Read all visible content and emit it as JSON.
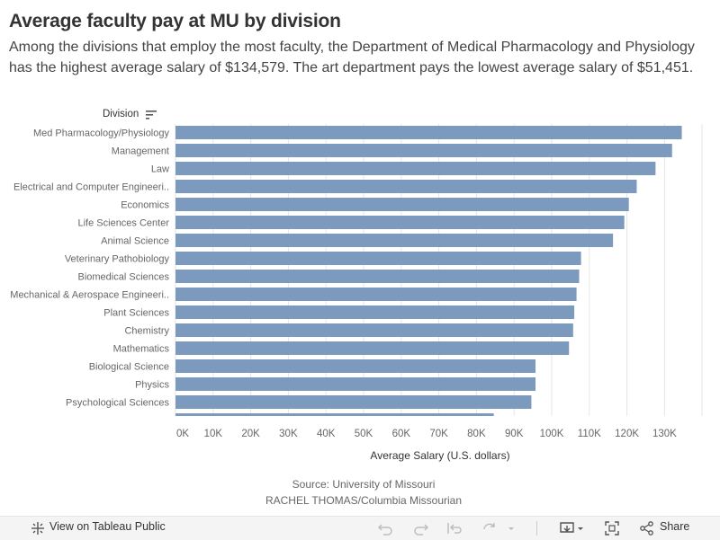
{
  "header": {
    "title": "Average faculty pay at MU by division",
    "subtitle": "Among the divisions that employ the most faculty, the Department of Medical Pharmacology and Physiology has the highest average salary of $134,579. The art department pays the lowest average salary of $51,451."
  },
  "field_label": "Division",
  "source": {
    "line1": "Source: University of Missouri",
    "line2": "RACHEL THOMAS/Columbia Missourian"
  },
  "footer": {
    "tableau_label": "View on Tableau Public",
    "share_label": "Share"
  },
  "colors": {
    "bar": "#7b9abd",
    "grid": "#e6e6e6",
    "axis_text": "#666666"
  },
  "chart_data": {
    "type": "bar",
    "orientation": "horizontal",
    "title": "",
    "xlabel": "Average Salary (U.S. dollars)",
    "ylabel": "Division",
    "categories": [
      "Med Pharmacology/Physiology",
      "Management",
      "Law",
      "Electrical and Computer Engineeri..",
      "Economics",
      "Life Sciences Center",
      "Animal Science",
      "Veterinary Pathobiology",
      "Biomedical Sciences",
      "Mechanical & Aerospace Engineeri..",
      "Plant Sciences",
      "Chemistry",
      "Mathematics",
      "Biological Science",
      "Physics",
      "Psychological Sciences",
      ""
    ],
    "values": [
      134579,
      132000,
      127600,
      122600,
      120500,
      119300,
      116300,
      107800,
      107300,
      106600,
      106000,
      105700,
      104600,
      95700,
      95700,
      94600,
      84600
    ],
    "xlim": [
      0,
      140000
    ],
    "xticks": [
      0,
      10000,
      20000,
      30000,
      40000,
      50000,
      60000,
      70000,
      80000,
      90000,
      100000,
      110000,
      120000,
      130000
    ],
    "xtick_labels": [
      "0K",
      "10K",
      "20K",
      "30K",
      "40K",
      "50K",
      "60K",
      "70K",
      "80K",
      "90K",
      "100K",
      "110K",
      "120K",
      "130K"
    ],
    "grid": true,
    "legend": "none"
  }
}
